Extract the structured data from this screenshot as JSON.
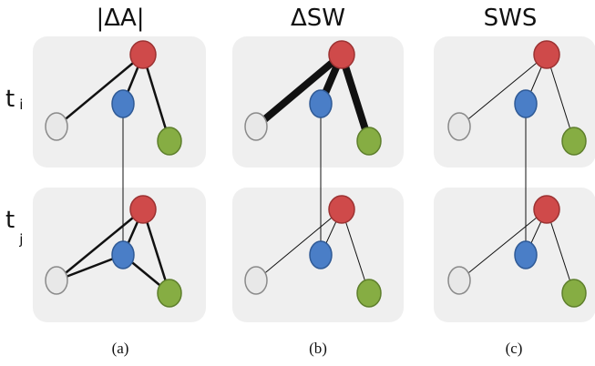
{
  "columns": [
    {
      "title": "|ΔA|",
      "caption": "(a)"
    },
    {
      "title": "ΔSW",
      "caption": "(b)"
    },
    {
      "title": "SWS",
      "caption": "(c)"
    }
  ],
  "rows": [
    {
      "label": "t",
      "sub": "i"
    },
    {
      "label": "t",
      "sub": "j"
    }
  ],
  "colors": {
    "panel": "#efefef",
    "red": "#cf4a4a",
    "blue": "#4a7ec7",
    "green": "#86ad43",
    "white": "#e8e8e8",
    "edge": "#111111"
  }
}
